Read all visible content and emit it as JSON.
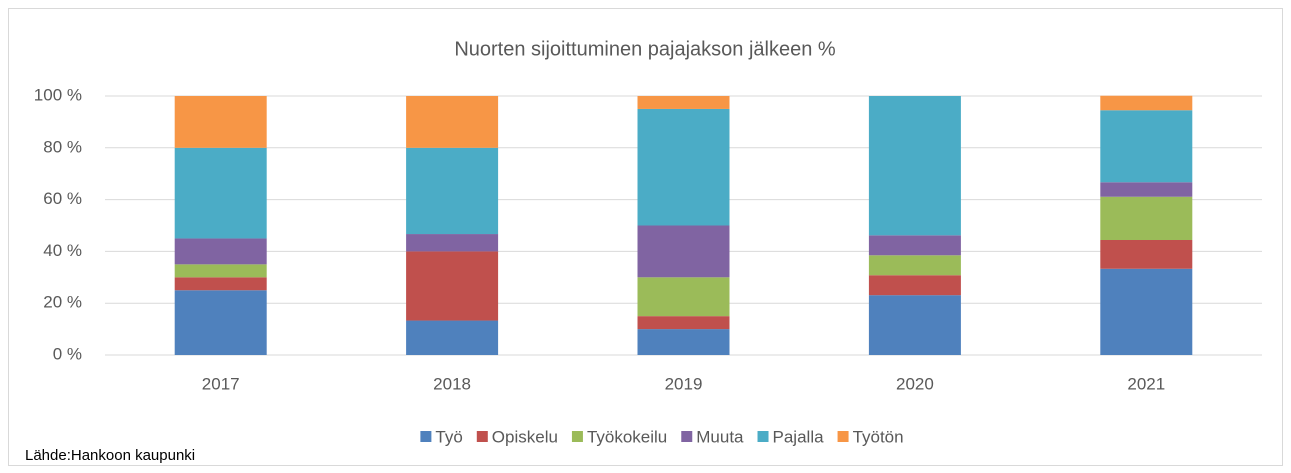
{
  "chart_data": {
    "type": "stacked_bar",
    "title": "Nuorten sijoittuminen pajajakson  jälkeen %",
    "categories": [
      "2017",
      "2018",
      "2019",
      "2020",
      "2021"
    ],
    "series": [
      {
        "name": "Työ",
        "color": "#4f81bd",
        "values": [
          25,
          13.3,
          10,
          23.1,
          33.3
        ]
      },
      {
        "name": "Opiskelu",
        "color": "#c0504d",
        "values": [
          5,
          26.7,
          5,
          7.7,
          11.1
        ]
      },
      {
        "name": "Työkokeilu",
        "color": "#9bbb59",
        "values": [
          5,
          0,
          15,
          7.7,
          16.7
        ]
      },
      {
        "name": "Muuta",
        "color": "#8064a2",
        "values": [
          10,
          6.7,
          20,
          7.7,
          5.6
        ]
      },
      {
        "name": "Pajalla",
        "color": "#4bacc6",
        "values": [
          35,
          33.3,
          45,
          53.8,
          27.8
        ]
      },
      {
        "name": "Työtön",
        "color": "#f79646",
        "values": [
          20,
          20,
          5,
          0,
          5.6
        ]
      }
    ],
    "ylim": [
      0,
      100
    ],
    "yticks": [
      {
        "value": 0,
        "label": "0 %"
      },
      {
        "value": 20,
        "label": "20 %"
      },
      {
        "value": 40,
        "label": "40 %"
      },
      {
        "value": 60,
        "label": "60 %"
      },
      {
        "value": 80,
        "label": "80 %"
      },
      {
        "value": 100,
        "label": "100 %"
      }
    ],
    "grid": true,
    "legend": "bottom",
    "source": "Lähde:Hankoon kaupunki"
  }
}
